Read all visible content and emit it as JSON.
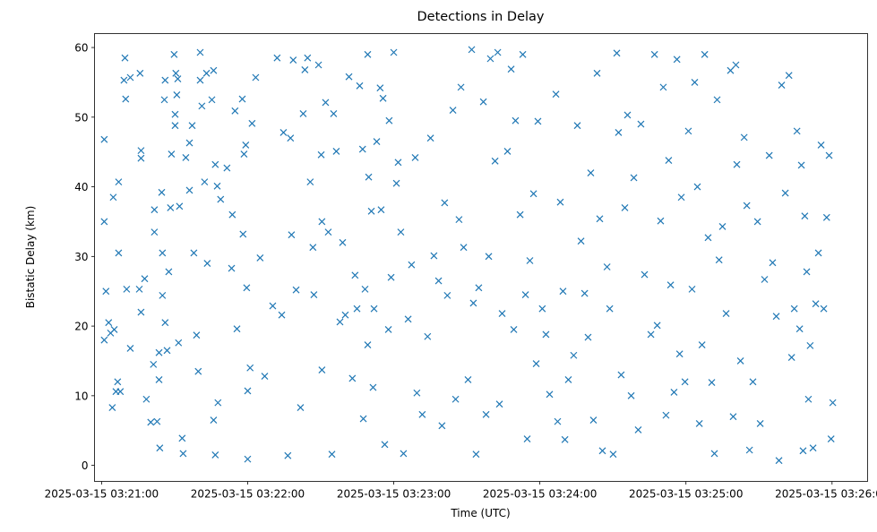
{
  "chart_data": {
    "type": "scatter",
    "title": "Detections in Delay",
    "xlabel": "Time (UTC)",
    "ylabel": "Bistatic Delay (km)",
    "x_unit": "seconds since 2025-03-15 03:21:00",
    "xlim": [
      -2.9,
      314.6
    ],
    "ylim": [
      -2.3,
      62.0
    ],
    "grid": false,
    "legend": "none",
    "marker": "x",
    "color": "#1f77b4",
    "xticks": [
      {
        "value": 0,
        "label": "2025-03-15 03:21:00"
      },
      {
        "value": 60,
        "label": "2025-03-15 03:22:00"
      },
      {
        "value": 120,
        "label": "2025-03-15 03:23:00"
      },
      {
        "value": 180,
        "label": "2025-03-15 03:24:00"
      },
      {
        "value": 240,
        "label": "2025-03-15 03:25:00"
      },
      {
        "value": 300,
        "label": "2025-03-15 03:26:00"
      }
    ],
    "yticks": [
      {
        "value": 0,
        "label": "0"
      },
      {
        "value": 10,
        "label": "10"
      },
      {
        "value": 20,
        "label": "20"
      },
      {
        "value": 30,
        "label": "30"
      },
      {
        "value": 40,
        "label": "40"
      },
      {
        "value": 50,
        "label": "50"
      },
      {
        "value": 60,
        "label": "60"
      }
    ],
    "points": [
      [
        1.1,
        46.8
      ],
      [
        1.1,
        35
      ],
      [
        1.8,
        25
      ],
      [
        1.1,
        18
      ],
      [
        2.9,
        20.5
      ],
      [
        3.7,
        19
      ],
      [
        5.2,
        19.5
      ],
      [
        4.4,
        8.3
      ],
      [
        4.8,
        38.5
      ],
      [
        7.0,
        40.7
      ],
      [
        7.0,
        30.5
      ],
      [
        6.6,
        12
      ],
      [
        5.9,
        10.6
      ],
      [
        7.7,
        10.6
      ],
      [
        9.6,
        58.5
      ],
      [
        9.2,
        55.3
      ],
      [
        9.9,
        52.6
      ],
      [
        10.3,
        25.3
      ],
      [
        11.8,
        55.7
      ],
      [
        11.8,
        16.8
      ],
      [
        15.5,
        25.3
      ],
      [
        15.8,
        56.3
      ],
      [
        16.2,
        45.2
      ],
      [
        16.2,
        44.1
      ],
      [
        16.2,
        22
      ],
      [
        17.7,
        26.8
      ],
      [
        18.4,
        9.5
      ],
      [
        20.2,
        6.2
      ],
      [
        21.3,
        14.5
      ],
      [
        21.7,
        33.5
      ],
      [
        21.7,
        36.7
      ],
      [
        22.8,
        6.3
      ],
      [
        23.6,
        12.3
      ],
      [
        23.6,
        16.2
      ],
      [
        23.9,
        2.5
      ],
      [
        24.7,
        39.2
      ],
      [
        25,
        30.5
      ],
      [
        25,
        24.4
      ],
      [
        25.8,
        52.5
      ],
      [
        26.1,
        55.3
      ],
      [
        26.1,
        20.5
      ],
      [
        26.9,
        16.5
      ],
      [
        27.6,
        27.8
      ],
      [
        28.3,
        37
      ],
      [
        28.7,
        44.7
      ],
      [
        29.8,
        59
      ],
      [
        30.2,
        50.4
      ],
      [
        30.2,
        48.8
      ],
      [
        30.5,
        56.3
      ],
      [
        30.9,
        53.2
      ],
      [
        31.3,
        55.5
      ],
      [
        31.6,
        17.6
      ],
      [
        32,
        37.2
      ],
      [
        33.1,
        3.9
      ],
      [
        33.5,
        1.7
      ],
      [
        34.6,
        44.2
      ],
      [
        36.1,
        46.3
      ],
      [
        36.1,
        39.5
      ],
      [
        37.2,
        48.8
      ],
      [
        37.9,
        30.5
      ],
      [
        39,
        18.7
      ],
      [
        39.7,
        13.5
      ],
      [
        40.5,
        59.3
      ],
      [
        40.5,
        55.3
      ],
      [
        41.2,
        51.6
      ],
      [
        42.3,
        40.7
      ],
      [
        43.1,
        56.3
      ],
      [
        43.4,
        29
      ],
      [
        45.3,
        52.5
      ],
      [
        46,
        56.7
      ],
      [
        46.7,
        43.2
      ],
      [
        47.5,
        40.1
      ],
      [
        46,
        6.5
      ],
      [
        47.8,
        9
      ],
      [
        46.7,
        1.5
      ],
      [
        48.9,
        38.2
      ],
      [
        51.5,
        42.7
      ],
      [
        53.4,
        28.3
      ],
      [
        53.7,
        36
      ],
      [
        54.8,
        50.9
      ],
      [
        55.6,
        19.6
      ],
      [
        57.8,
        52.6
      ],
      [
        58.1,
        33.2
      ],
      [
        58.5,
        44.7
      ],
      [
        59.2,
        46
      ],
      [
        59.6,
        25.5
      ],
      [
        60,
        10.7
      ],
      [
        60,
        0.9
      ],
      [
        61,
        14
      ],
      [
        61.8,
        49.1
      ],
      [
        63.3,
        55.7
      ],
      [
        65.1,
        29.8
      ],
      [
        67,
        12.8
      ],
      [
        70.3,
        22.9
      ],
      [
        72.1,
        58.5
      ],
      [
        74,
        21.6
      ],
      [
        74.7,
        47.8
      ],
      [
        76.5,
        1.4
      ],
      [
        77.6,
        47
      ],
      [
        78,
        33.1
      ],
      [
        78.7,
        58.2
      ],
      [
        79.9,
        25.2
      ],
      [
        81.7,
        8.3
      ],
      [
        82.8,
        50.5
      ],
      [
        83.5,
        56.8
      ],
      [
        84.6,
        58.5
      ],
      [
        85.7,
        40.7
      ],
      [
        86.8,
        31.3
      ],
      [
        87.2,
        24.5
      ],
      [
        89.1,
        57.5
      ],
      [
        90.2,
        44.6
      ],
      [
        90.5,
        13.7
      ],
      [
        90.5,
        35
      ],
      [
        92,
        52.1
      ],
      [
        93.1,
        33.5
      ],
      [
        94.6,
        1.6
      ],
      [
        95.3,
        50.5
      ],
      [
        96.4,
        45.1
      ],
      [
        97.9,
        20.6
      ],
      [
        99,
        32
      ],
      [
        100.1,
        21.6
      ],
      [
        101.6,
        55.8
      ],
      [
        103,
        12.5
      ],
      [
        104.1,
        27.3
      ],
      [
        104.9,
        22.5
      ],
      [
        106,
        54.5
      ],
      [
        107.2,
        45.4
      ],
      [
        107.5,
        6.7
      ],
      [
        108.2,
        25.3
      ],
      [
        109.3,
        59
      ],
      [
        109.3,
        17.3
      ],
      [
        109.7,
        41.4
      ],
      [
        110.8,
        36.5
      ],
      [
        111.5,
        11.2
      ],
      [
        111.9,
        22.5
      ],
      [
        113,
        46.5
      ],
      [
        114.4,
        54.2
      ],
      [
        114.8,
        36.7
      ],
      [
        115.6,
        52.7
      ],
      [
        116.3,
        3
      ],
      [
        117.8,
        19.5
      ],
      [
        118.1,
        49.5
      ],
      [
        118.9,
        27
      ],
      [
        120,
        59.3
      ],
      [
        121.1,
        40.5
      ],
      [
        121.8,
        43.5
      ],
      [
        122.9,
        33.5
      ],
      [
        124,
        1.7
      ],
      [
        125.9,
        21
      ],
      [
        127.3,
        28.8
      ],
      [
        128.8,
        44.2
      ],
      [
        129.5,
        10.4
      ],
      [
        131.7,
        7.3
      ],
      [
        133.9,
        18.5
      ],
      [
        135.1,
        47
      ],
      [
        136.5,
        30.1
      ],
      [
        138.4,
        26.5
      ],
      [
        139.8,
        5.7
      ],
      [
        140.9,
        37.7
      ],
      [
        142,
        24.4
      ],
      [
        144.3,
        51
      ],
      [
        145.4,
        9.5
      ],
      [
        146.8,
        35.3
      ],
      [
        147.6,
        54.3
      ],
      [
        148.7,
        31.3
      ],
      [
        150.5,
        12.3
      ],
      [
        152,
        59.7
      ],
      [
        152.7,
        23.3
      ],
      [
        153.8,
        1.6
      ],
      [
        154.9,
        25.5
      ],
      [
        156.8,
        52.2
      ],
      [
        157.9,
        7.3
      ],
      [
        159,
        30
      ],
      [
        159.7,
        58.4
      ],
      [
        161.6,
        43.7
      ],
      [
        162.7,
        59.3
      ],
      [
        163.4,
        8.8
      ],
      [
        164.5,
        21.8
      ],
      [
        166.7,
        45.1
      ],
      [
        168.2,
        56.9
      ],
      [
        169.3,
        19.5
      ],
      [
        170,
        49.5
      ],
      [
        171.9,
        36
      ],
      [
        173,
        59
      ],
      [
        174.1,
        24.5
      ],
      [
        174.8,
        3.8
      ],
      [
        175.9,
        29.4
      ],
      [
        177.4,
        39
      ],
      [
        178.5,
        14.6
      ],
      [
        179.2,
        49.4
      ],
      [
        181,
        22.5
      ],
      [
        182.5,
        18.8
      ],
      [
        184,
        10.2
      ],
      [
        186.6,
        53.3
      ],
      [
        187.3,
        6.3
      ],
      [
        188.4,
        37.8
      ],
      [
        189.5,
        25
      ],
      [
        190.3,
        3.7
      ],
      [
        191.7,
        12.3
      ],
      [
        193.9,
        15.8
      ],
      [
        195.4,
        48.8
      ],
      [
        196.9,
        32.2
      ],
      [
        198.4,
        24.7
      ],
      [
        199.8,
        18.4
      ],
      [
        200.9,
        42
      ],
      [
        202,
        6.5
      ],
      [
        203.5,
        56.3
      ],
      [
        204.6,
        35.4
      ],
      [
        205.7,
        2.1
      ],
      [
        207.6,
        28.5
      ],
      [
        208.7,
        22.5
      ],
      [
        210.1,
        1.6
      ],
      [
        211.6,
        59.2
      ],
      [
        212.3,
        47.8
      ],
      [
        213.4,
        13
      ],
      [
        214.9,
        37
      ],
      [
        216,
        50.3
      ],
      [
        217.5,
        10
      ],
      [
        218.6,
        41.3
      ],
      [
        220.4,
        5.1
      ],
      [
        221.5,
        49
      ],
      [
        223,
        27.4
      ],
      [
        225.6,
        18.8
      ],
      [
        227.1,
        59
      ],
      [
        228.2,
        20.1
      ],
      [
        229.6,
        35.1
      ],
      [
        230.7,
        54.3
      ],
      [
        231.8,
        7.2
      ],
      [
        232.9,
        43.8
      ],
      [
        233.7,
        25.9
      ],
      [
        235.1,
        10.5
      ],
      [
        236.3,
        58.3
      ],
      [
        237.4,
        16
      ],
      [
        238.1,
        38.5
      ],
      [
        239.6,
        12
      ],
      [
        241,
        48
      ],
      [
        242.5,
        25.3
      ],
      [
        243.6,
        55
      ],
      [
        244.7,
        40
      ],
      [
        245.5,
        6
      ],
      [
        246.6,
        17.3
      ],
      [
        247.7,
        59
      ],
      [
        249.1,
        32.7
      ],
      [
        250.6,
        11.9
      ],
      [
        251.7,
        1.7
      ],
      [
        252.8,
        52.5
      ],
      [
        253.6,
        29.5
      ],
      [
        255,
        34.3
      ],
      [
        256.5,
        21.8
      ],
      [
        258.3,
        56.7
      ],
      [
        259.4,
        7
      ],
      [
        260.5,
        57.5
      ],
      [
        260.9,
        43.2
      ],
      [
        262.4,
        15
      ],
      [
        263.9,
        47.1
      ],
      [
        265,
        37.3
      ],
      [
        266.1,
        2.2
      ],
      [
        267.5,
        12
      ],
      [
        269.4,
        35
      ],
      [
        270.5,
        6
      ],
      [
        272.3,
        26.7
      ],
      [
        274.2,
        44.5
      ],
      [
        275.6,
        29.1
      ],
      [
        277.1,
        21.4
      ],
      [
        278.2,
        0.7
      ],
      [
        279.3,
        54.6
      ],
      [
        280.8,
        39.1
      ],
      [
        282.3,
        56
      ],
      [
        283.4,
        15.5
      ],
      [
        284.5,
        22.5
      ],
      [
        285.6,
        48
      ],
      [
        286.7,
        19.6
      ],
      [
        287.4,
        43.1
      ],
      [
        288.1,
        2.1
      ],
      [
        288.8,
        35.8
      ],
      [
        289.6,
        27.8
      ],
      [
        290.3,
        9.5
      ],
      [
        291,
        17.2
      ],
      [
        292.2,
        2.5
      ],
      [
        293.3,
        23.2
      ],
      [
        294.4,
        30.5
      ],
      [
        295.5,
        46
      ],
      [
        296.6,
        22.5
      ],
      [
        297.8,
        35.6
      ],
      [
        298.8,
        44.5
      ],
      [
        299.6,
        3.8
      ],
      [
        300.3,
        9
      ]
    ]
  }
}
